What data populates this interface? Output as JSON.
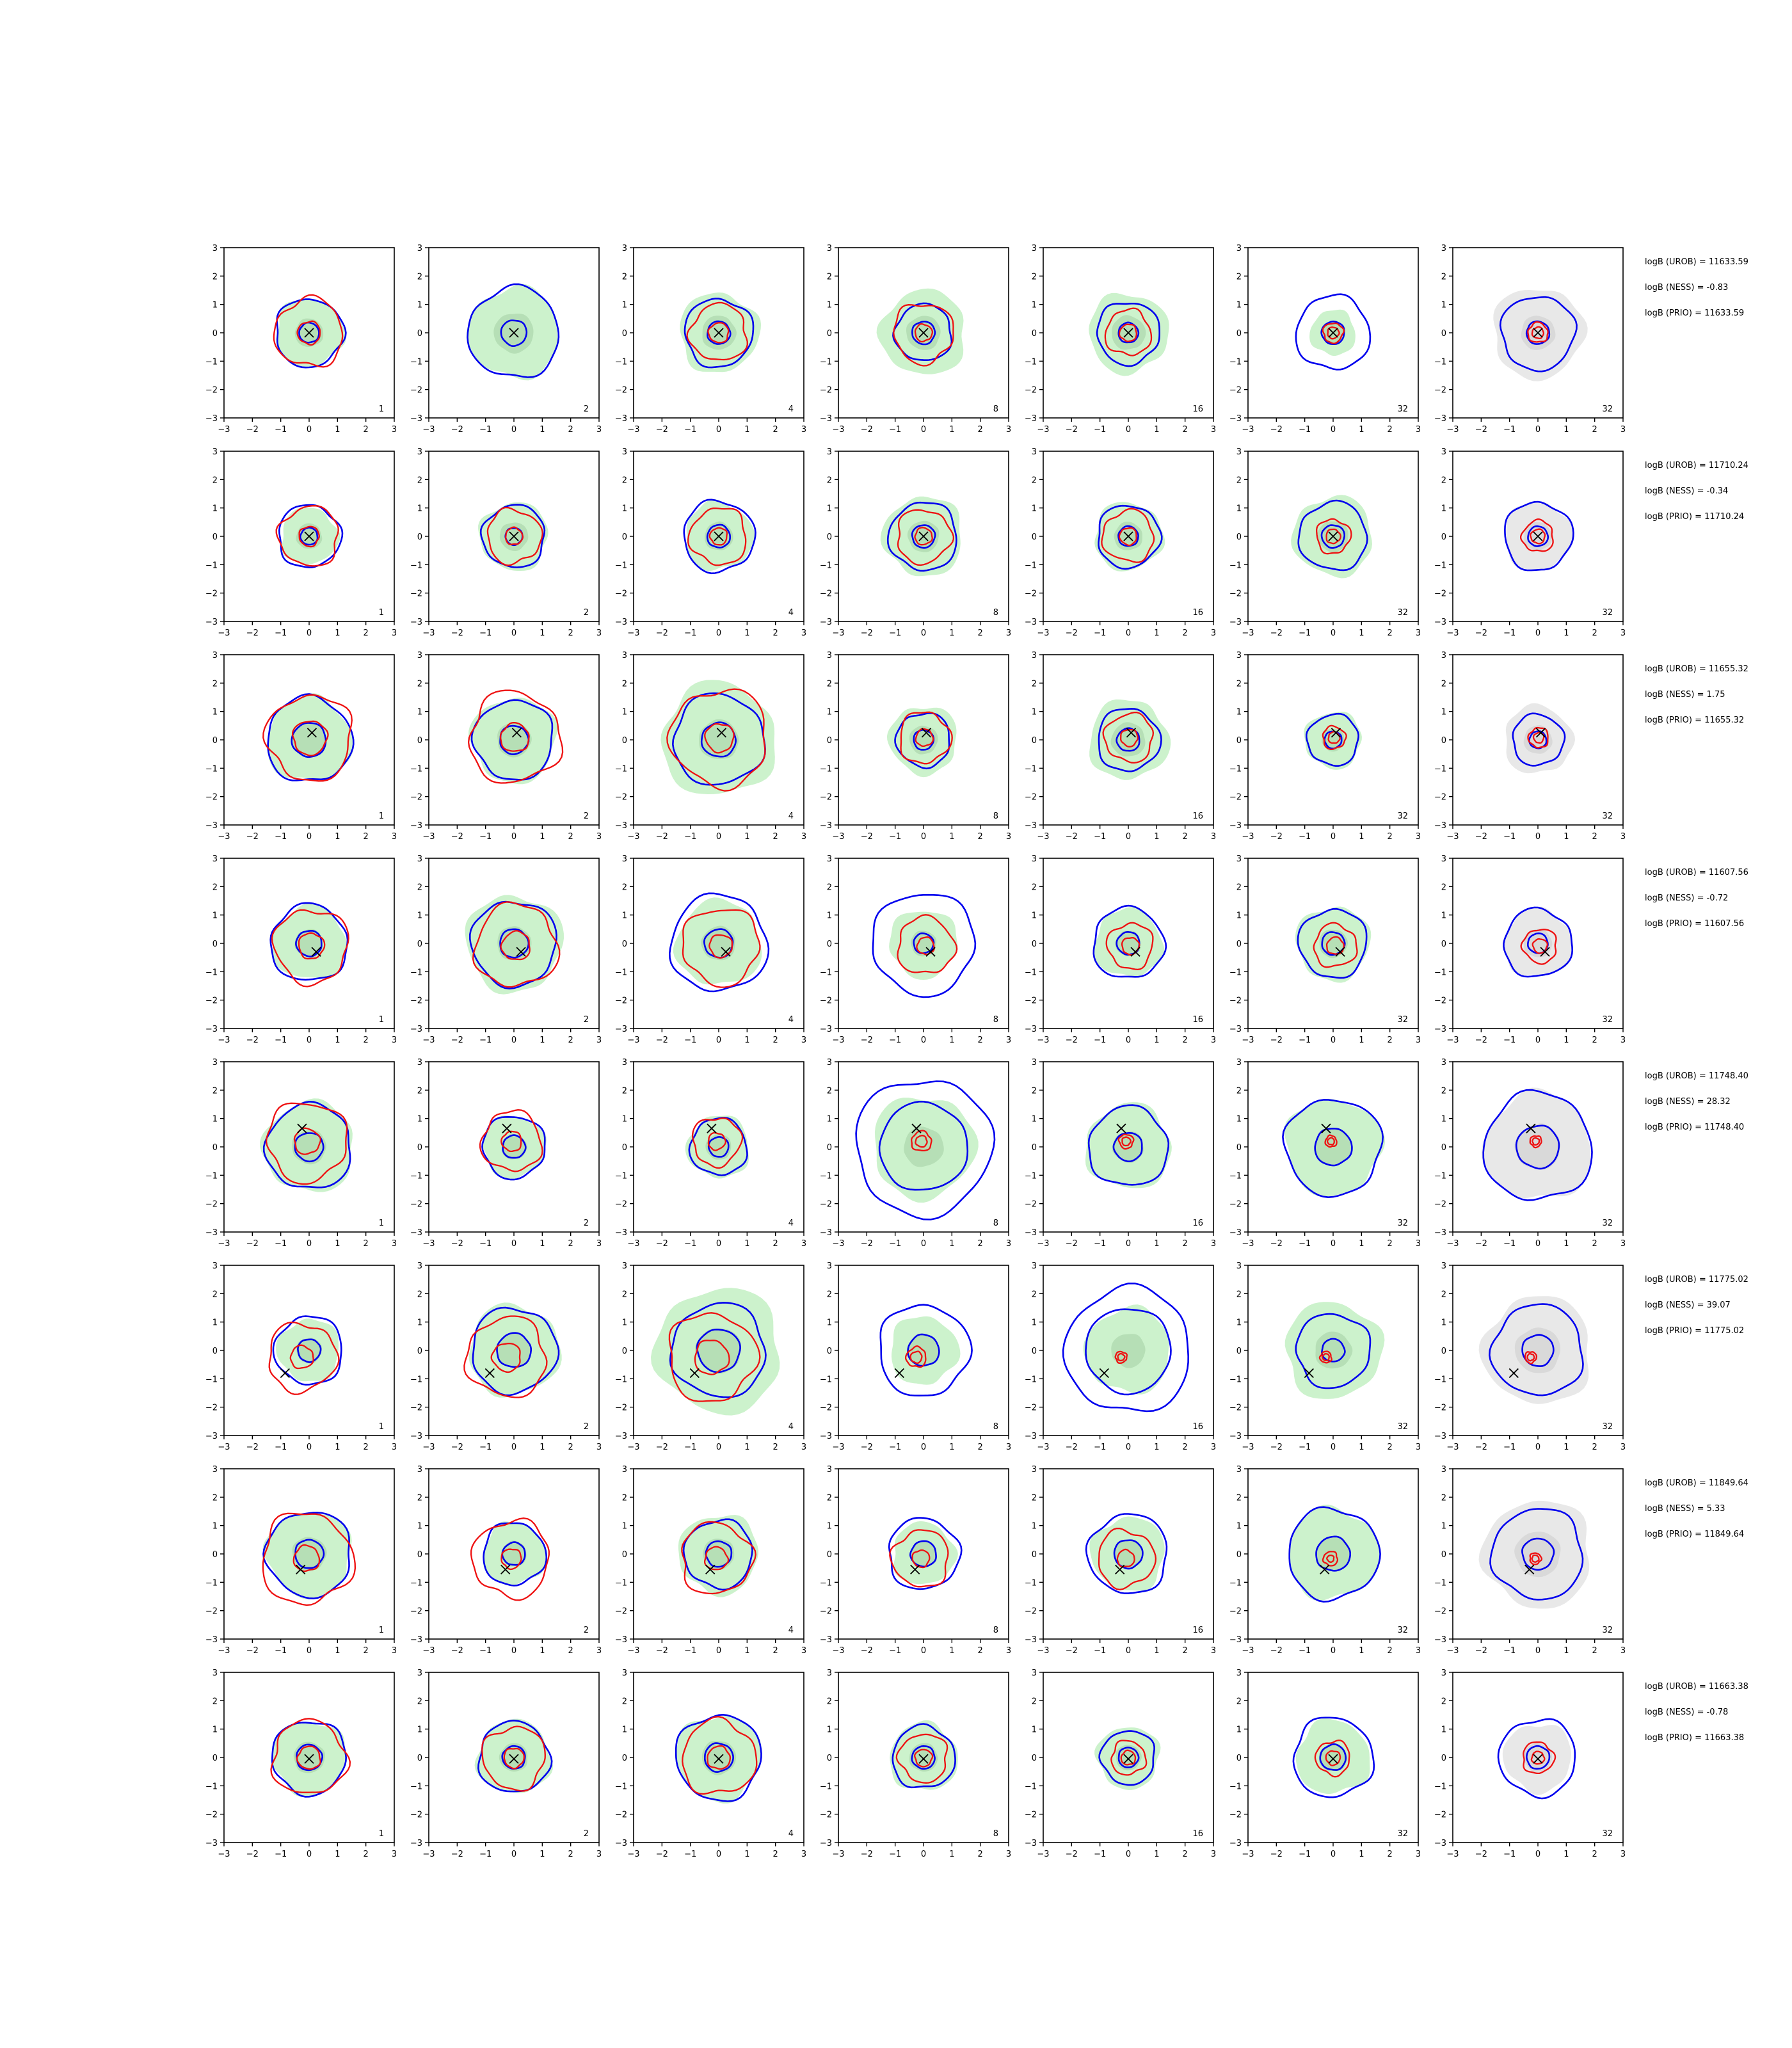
{
  "chart_data": {
    "type": "contour_grid",
    "axis_range": [
      -3,
      3
    ],
    "ticks": [
      "−3",
      "−2",
      "−1",
      "0",
      "1",
      "2",
      "3"
    ],
    "columns": [
      "1",
      "2",
      "4",
      "8",
      "16",
      "32",
      "32"
    ],
    "colors": {
      "blue": "#0000ee",
      "red": "#ee1111",
      "green_fill": "#ccf2cc",
      "gray_fill": "#e8e8e8"
    },
    "rows": [
      {
        "truth": [
          0.0,
          0.0
        ],
        "stats": [
          "logB (UROB) = 11633.59",
          "logB (NESS) = -0.83",
          "logB (PRIO) = 11633.59"
        ],
        "panels": [
          {
            "g": [
              1.2,
              0.5
            ],
            "bo": 1.2,
            "bi": 0.35,
            "r": [
              1.2,
              0.4
            ]
          },
          {
            "g": [
              1.6,
              0.7
            ],
            "bo": 1.6,
            "bi": 0.45,
            "r": []
          },
          {
            "g": [
              1.4,
              0.6
            ],
            "bo": 1.2,
            "bi": 0.4,
            "r": [
              1.0,
              0.35
            ]
          },
          {
            "g": [
              1.5,
              0.6
            ],
            "bo": 1.0,
            "bi": 0.4,
            "r": [
              1.05,
              0.3
            ]
          },
          {
            "g": [
              1.4,
              0.6
            ],
            "bo": 1.1,
            "bi": 0.35,
            "r": [
              0.8,
              0.3
            ]
          },
          {
            "g": [
              0.8,
              0.4
            ],
            "bo": 1.3,
            "bi": 0.4,
            "r": [
              0.35,
              0.2
            ]
          },
          {
            "g": [
              1.6,
              0.6
            ],
            "bo": 1.3,
            "bi": 0.4,
            "r": [
              0.35,
              0.2
            ],
            "gray": true
          }
        ]
      },
      {
        "truth": [
          0.0,
          0.0
        ],
        "stats": [
          "logB (UROB) = 11710.24",
          "logB (NESS) = -0.34",
          "logB (PRIO) = 11710.24"
        ],
        "panels": [
          {
            "g": [
              1.0,
              0.45
            ],
            "bo": 1.1,
            "bi": 0.3,
            "r": [
              1.05,
              0.35
            ]
          },
          {
            "g": [
              1.2,
              0.5
            ],
            "bo": 1.1,
            "bi": 0.3,
            "r": [
              0.95,
              0.3
            ]
          },
          {
            "g": [
              1.2,
              0.5
            ],
            "bo": 1.25,
            "bi": 0.4,
            "r": [
              1.0,
              0.3
            ]
          },
          {
            "g": [
              1.4,
              0.55
            ],
            "bo": 1.2,
            "bi": 0.4,
            "r": [
              0.95,
              0.3
            ]
          },
          {
            "g": [
              1.2,
              0.5
            ],
            "bo": 1.1,
            "bi": 0.35,
            "r": [
              0.9,
              0.3
            ]
          },
          {
            "g": [
              1.4,
              0.55
            ],
            "bo": 1.2,
            "bi": 0.4,
            "r": [
              0.6,
              0.25
            ]
          },
          {
            "g": [
              1.2,
              0.5
            ],
            "bo": 1.2,
            "bi": 0.35,
            "r": [
              0.55,
              0.25
            ],
            "gray": true
          }
        ]
      },
      {
        "truth": [
          0.1,
          0.25
        ],
        "stats": [
          "logB (UROB) = 11655.32",
          "logB (NESS) = 1.75",
          "logB (PRIO) = 11655.32"
        ],
        "panels": [
          {
            "g": [
              1.5,
              0.6
            ],
            "bo": 1.5,
            "bi": 0.6,
            "r": [
              1.5,
              0.6
            ]
          },
          {
            "g": [
              1.5,
              0.6
            ],
            "bo": 1.4,
            "bi": 0.5,
            "r": [
              1.6,
              0.5
            ]
          },
          {
            "g": [
              2.0,
              0.7
            ],
            "bo": 1.6,
            "bi": 0.6,
            "r": [
              1.7,
              0.5
            ]
          },
          {
            "g": [
              1.2,
              0.5
            ],
            "bo": 0.95,
            "bi": 0.35,
            "r": [
              0.9,
              0.3
            ]
          },
          {
            "g": [
              1.4,
              0.6
            ],
            "bo": 1.1,
            "bi": 0.4,
            "r": [
              0.85,
              0.3
            ]
          },
          {
            "g": [
              1.0,
              0.4
            ],
            "bo": 0.9,
            "bi": 0.3,
            "r": [
              0.4,
              0.2
            ]
          },
          {
            "g": [
              1.2,
              0.5
            ],
            "bo": 0.9,
            "bi": 0.3,
            "r": [
              0.35,
              0.18
            ],
            "gray": true
          }
        ]
      },
      {
        "truth": [
          0.25,
          -0.3
        ],
        "stats": [
          "logB (UROB) = 11607.56",
          "logB (NESS) = -0.72",
          "logB (PRIO) = 11607.56"
        ],
        "panels": [
          {
            "g": [
              1.3,
              0.5
            ],
            "bo": 1.35,
            "bi": 0.45,
            "r": [
              1.3,
              0.45
            ]
          },
          {
            "g": [
              1.7,
              0.6
            ],
            "bo": 1.5,
            "bi": 0.5,
            "r": [
              1.45,
              0.5
            ]
          },
          {
            "g": [
              1.5,
              0.6
            ],
            "bo": 1.7,
            "bi": 0.5,
            "r": [
              1.35,
              0.4
            ]
          },
          {
            "g": [
              1.2,
              0.45
            ],
            "bo": 1.8,
            "bi": 0.35,
            "r": [
              1.0,
              0.3
            ]
          },
          {
            "g": [
              1.2,
              0.45
            ],
            "bo": 1.25,
            "bi": 0.4,
            "r": [
              0.8,
              0.3
            ]
          },
          {
            "g": [
              1.3,
              0.5
            ],
            "bo": 1.2,
            "bi": 0.4,
            "r": [
              0.75,
              0.3
            ]
          },
          {
            "g": [
              1.2,
              0.5
            ],
            "bo": 1.2,
            "bi": 0.35,
            "r": [
              0.6,
              0.25
            ],
            "gray": true
          }
        ]
      },
      {
        "truth": [
          -0.25,
          0.65
        ],
        "stats": [
          "logB (UROB) = 11748.40",
          "logB (NESS) = 28.32",
          "logB (PRIO) = 11748.40"
        ],
        "panels": [
          {
            "g": [
              1.6,
              0.6
            ],
            "bo": 1.5,
            "bi": 0.5,
            "r": [
              1.4,
              0.45
            ]
          },
          {
            "g": [
              1.1,
              0.45
            ],
            "bo": 1.1,
            "bi": 0.4,
            "r": [
              1.05,
              0.35
            ]
          },
          {
            "g": [
              1.1,
              0.45
            ],
            "bo": 1.0,
            "bi": 0.35,
            "r": [
              0.85,
              0.3
            ]
          },
          {
            "g": [
              1.8,
              0.7
            ],
            "bo": 2.4,
            "bi": 1.55,
            "r": [
              0.35,
              0.2
            ]
          },
          {
            "g": [
              1.5,
              0.55
            ],
            "bo": 1.4,
            "bi": 0.5,
            "r": [
              0.25,
              0.15
            ]
          },
          {
            "g": [
              1.7,
              0.65
            ],
            "bo": 1.7,
            "bi": 0.65,
            "r": [
              0.2,
              0.12
            ]
          },
          {
            "g": [
              1.9,
              0.8
            ],
            "bo": 1.9,
            "bi": 0.75,
            "r": [
              0.2,
              0.12
            ],
            "gray": true
          }
        ]
      },
      {
        "truth": [
          -0.85,
          -0.8
        ],
        "stats": [
          "logB (UROB) = 11775.02",
          "logB (NESS) = 39.07",
          "logB (PRIO) = 11775.02"
        ],
        "panels": [
          {
            "g": [
              1.1,
              0.45
            ],
            "bo": 1.2,
            "bi": 0.4,
            "r": [
              1.2,
              0.4
            ]
          },
          {
            "g": [
              1.6,
              0.6
            ],
            "bo": 1.5,
            "bi": 0.6,
            "r": [
              1.4,
              0.5
            ]
          },
          {
            "g": [
              2.2,
              0.8
            ],
            "bo": 1.65,
            "bi": 0.75,
            "r": [
              1.55,
              0.6
            ]
          },
          {
            "g": [
              1.2,
              0.55
            ],
            "bo": 1.6,
            "bi": 0.55,
            "r": [
              0.35,
              0.2
            ]
          },
          {
            "g": [
              1.5,
              0.6
            ],
            "bo": 2.2,
            "bi": 1.5,
            "r": [
              0.2,
              0.12
            ]
          },
          {
            "g": [
              1.7,
              0.65
            ],
            "bo": 1.3,
            "bi": 0.4,
            "r": [
              0.2,
              0.12
            ]
          },
          {
            "g": [
              1.9,
              0.8
            ],
            "bo": 1.6,
            "bi": 0.55,
            "r": [
              0.2,
              0.12
            ],
            "gray": true
          }
        ]
      },
      {
        "truth": [
          -0.3,
          -0.55
        ],
        "stats": [
          "logB (UROB) = 11849.64",
          "logB (NESS) = 5.33",
          "logB (PRIO) = 11849.64"
        ],
        "panels": [
          {
            "g": [
              1.5,
              0.6
            ],
            "bo": 1.5,
            "bi": 0.5,
            "r": [
              1.6,
              0.45
            ]
          },
          {
            "g": [
              1.1,
              0.45
            ],
            "bo": 1.1,
            "bi": 0.4,
            "r": [
              1.35,
              0.35
            ]
          },
          {
            "g": [
              1.4,
              0.55
            ],
            "bo": 1.2,
            "bi": 0.45,
            "r": [
              1.25,
              0.4
            ]
          },
          {
            "g": [
              1.1,
              0.45
            ],
            "bo": 1.25,
            "bi": 0.45,
            "r": [
              1.0,
              0.3
            ]
          },
          {
            "g": [
              1.3,
              0.5
            ],
            "bo": 1.4,
            "bi": 0.5,
            "r": [
              1.0,
              0.3
            ]
          },
          {
            "g": [
              1.6,
              0.6
            ],
            "bo": 1.6,
            "bi": 0.6,
            "r": [
              0.25,
              0.12
            ]
          },
          {
            "g": [
              1.9,
              0.8
            ],
            "bo": 1.6,
            "bi": 0.55,
            "r": [
              0.2,
              0.12
            ],
            "gray": true
          }
        ]
      },
      {
        "truth": [
          0.0,
          -0.05
        ],
        "stats": [
          "logB (UROB) = 11663.38",
          "logB (NESS) = -0.78",
          "logB (PRIO) = 11663.38"
        ],
        "panels": [
          {
            "g": [
              1.3,
              0.55
            ],
            "bo": 1.3,
            "bi": 0.45,
            "r": [
              1.3,
              0.4
            ]
          },
          {
            "g": [
              1.3,
              0.5
            ],
            "bo": 1.25,
            "bi": 0.4,
            "r": [
              1.1,
              0.35
            ]
          },
          {
            "g": [
              1.5,
              0.6
            ],
            "bo": 1.5,
            "bi": 0.5,
            "r": [
              1.3,
              0.4
            ]
          },
          {
            "g": [
              1.2,
              0.5
            ],
            "bo": 1.1,
            "bi": 0.4,
            "r": [
              0.85,
              0.3
            ]
          },
          {
            "g": [
              1.1,
              0.45
            ],
            "bo": 0.95,
            "bi": 0.35,
            "r": [
              0.6,
              0.25
            ]
          },
          {
            "g": [
              1.3,
              0.5
            ],
            "bo": 1.4,
            "bi": 0.45,
            "r": [
              0.6,
              0.25
            ]
          },
          {
            "g": [
              1.2,
              0.5
            ],
            "bo": 1.35,
            "bi": 0.4,
            "r": [
              0.55,
              0.22
            ],
            "gray": true
          }
        ]
      }
    ]
  }
}
